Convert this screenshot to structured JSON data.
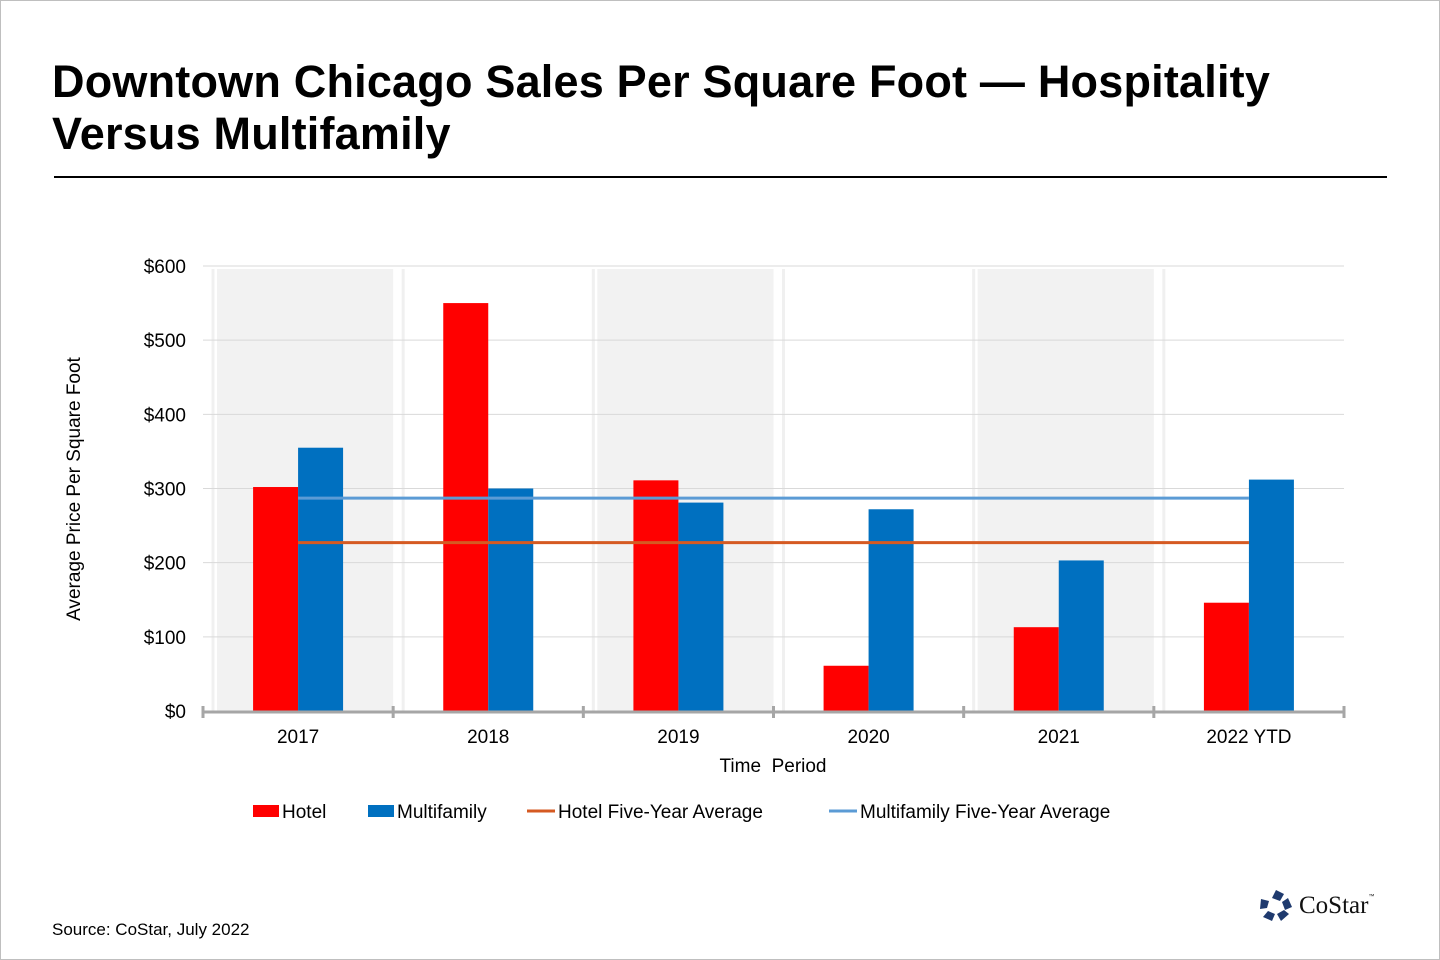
{
  "title": "Downtown Chicago Sales Per Square Foot — Hospitality Versus Multifamily",
  "source": "Source: CoStar, July 2022",
  "logo": {
    "text": "CoStar",
    "tm": "™"
  },
  "chart_data": {
    "type": "bar",
    "title": "Downtown Chicago Sales Per Square Foot — Hospitality Versus Multifamily",
    "xlabel": "Time  Period",
    "ylabel": "Average Price Per Square Foot",
    "categories": [
      "2017",
      "2018",
      "2019",
      "2020",
      "2021",
      "2022 YTD"
    ],
    "ylim": [
      0,
      600
    ],
    "yticks": [
      0,
      100,
      200,
      300,
      400,
      500,
      600
    ],
    "ytick_labels": [
      "$0",
      "$100",
      "$200",
      "$300",
      "$400",
      "$500",
      "$600"
    ],
    "grid": true,
    "shaded_categories": [
      "2017",
      "2019",
      "2021"
    ],
    "series": [
      {
        "name": "Hotel",
        "kind": "bar",
        "color": "#ff0000",
        "values": [
          302,
          550,
          311,
          61,
          113,
          146
        ]
      },
      {
        "name": "Multifamily",
        "kind": "bar",
        "color": "#0070c0",
        "values": [
          355,
          300,
          281,
          272,
          203,
          312
        ]
      }
    ],
    "reference_lines": [
      {
        "name": "Hotel Five-Year Average",
        "kind": "line",
        "color": "#d55a22",
        "value": 227
      },
      {
        "name": "Multifamily Five-Year Average",
        "kind": "line",
        "color": "#5b9bd5",
        "value": 287
      }
    ],
    "legend": {
      "position": "bottom",
      "items": [
        {
          "label": "Hotel",
          "type": "box",
          "color": "#ff0000"
        },
        {
          "label": "Multifamily",
          "type": "box",
          "color": "#0070c0"
        },
        {
          "label": "Hotel Five-Year Average",
          "type": "line",
          "color": "#d55a22"
        },
        {
          "label": "Multifamily Five-Year Average",
          "type": "line",
          "color": "#5b9bd5"
        }
      ]
    }
  }
}
